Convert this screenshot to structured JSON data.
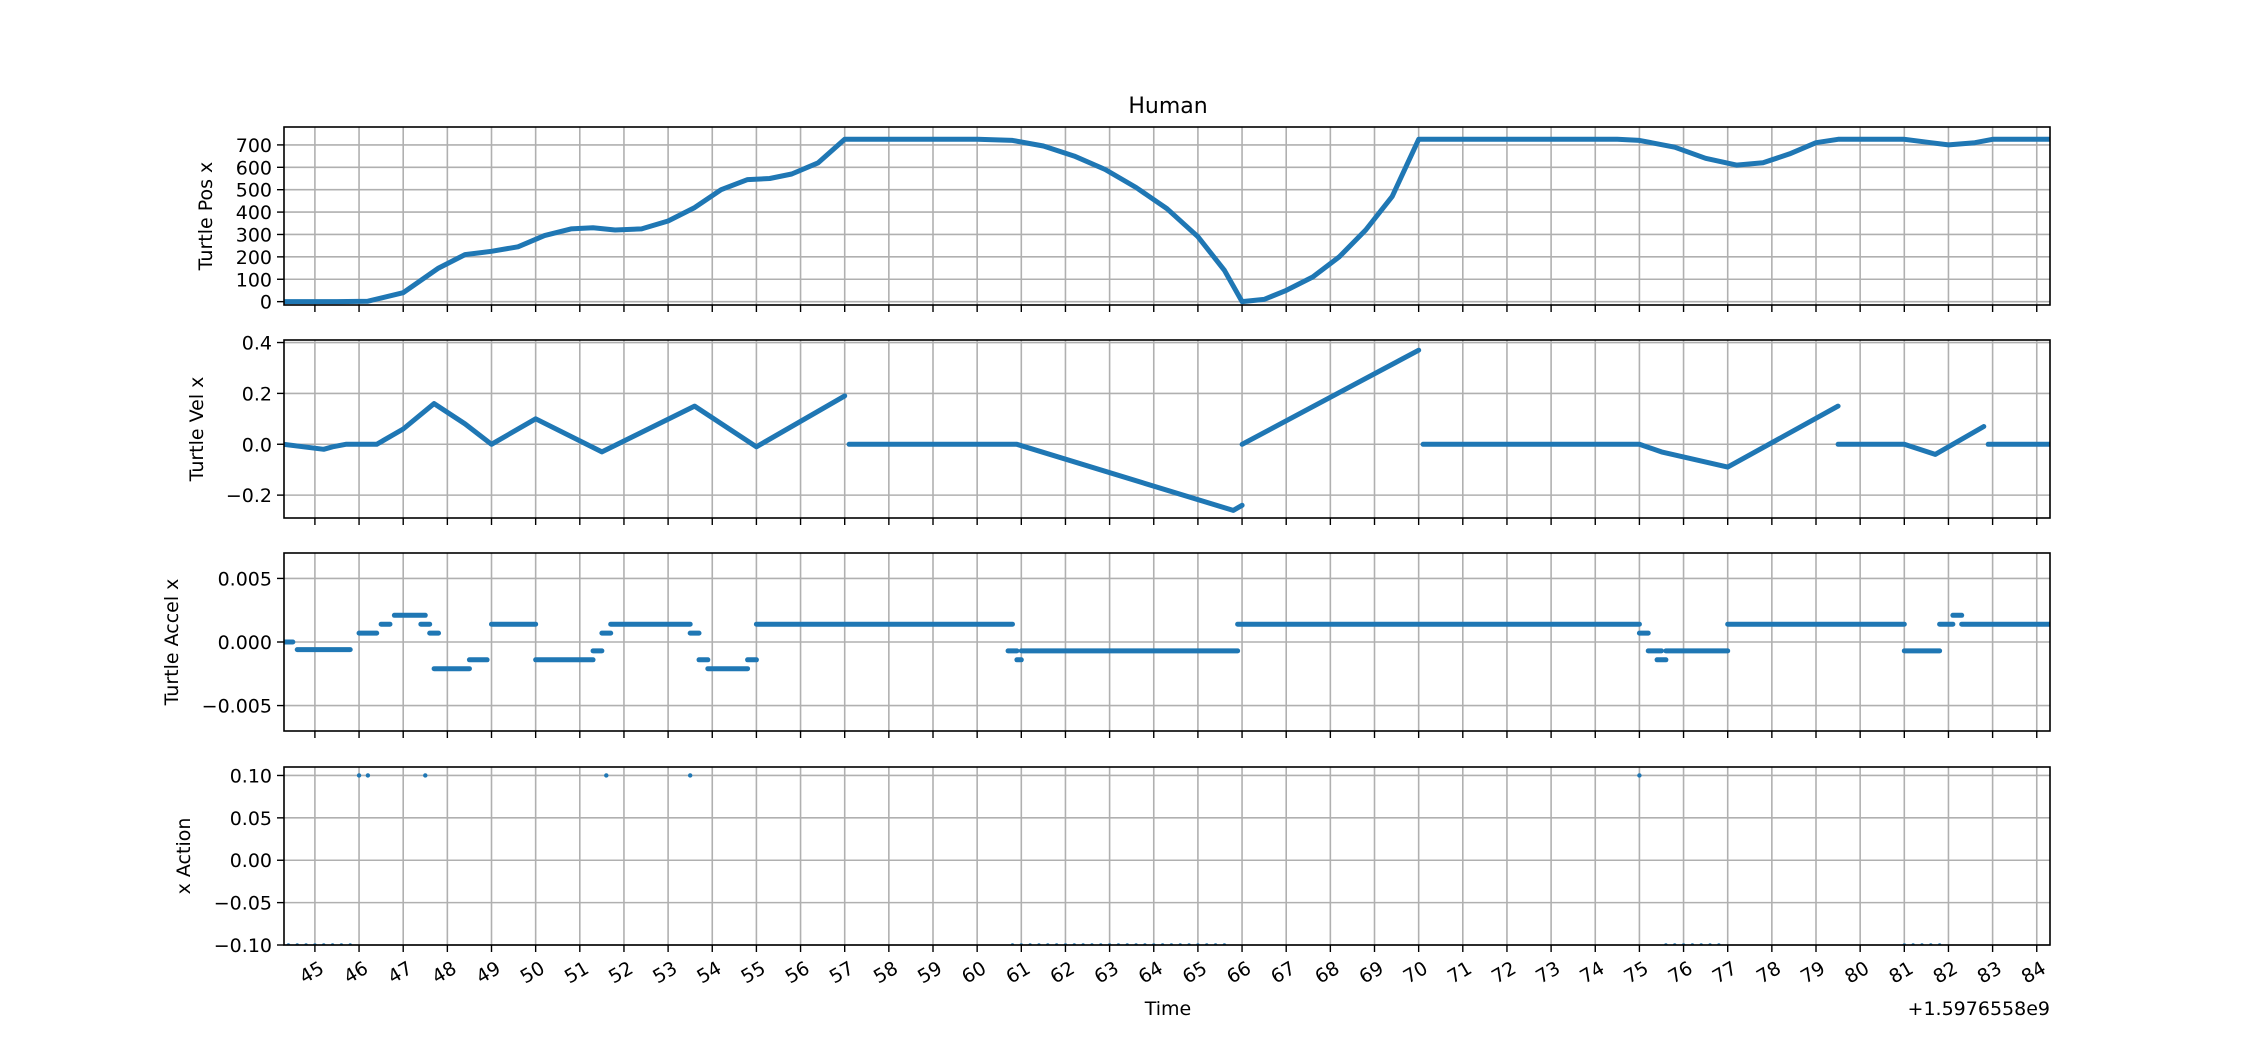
{
  "chart_data": [
    {
      "type": "line",
      "title": "Human",
      "ylabel": "Turtle Pos x",
      "ylim": [
        -15,
        780
      ],
      "yticks": [
        0,
        100,
        200,
        300,
        400,
        500,
        600,
        700
      ],
      "ytick_labels": [
        "0",
        "100",
        "200",
        "300",
        "400",
        "500",
        "600",
        "700"
      ],
      "grid": true,
      "color": "#1f77b4",
      "series": [
        {
          "x": [
            44.3,
            45.5,
            46.2,
            47.0,
            47.8,
            48.4,
            49.0,
            49.6,
            50.2,
            50.8,
            51.3,
            51.8,
            52.4,
            53.0,
            53.6,
            54.2,
            54.8,
            55.3,
            55.8,
            56.4,
            57.0,
            60.0,
            60.8,
            61.5,
            62.2,
            62.9,
            63.6,
            64.3,
            65.0,
            65.6,
            66.0,
            66.5,
            67.0,
            67.6,
            68.2,
            68.8,
            69.4,
            70.0,
            74.5,
            75.0,
            75.8,
            76.5,
            77.2,
            77.8,
            78.4,
            79.0,
            79.5,
            80.0,
            81.0,
            81.6,
            82.0,
            82.6,
            83.0,
            84.3
          ],
          "y": [
            0,
            0,
            2,
            40,
            150,
            210,
            225,
            245,
            295,
            325,
            330,
            320,
            325,
            360,
            420,
            500,
            545,
            550,
            570,
            620,
            725,
            725,
            720,
            695,
            650,
            590,
            510,
            415,
            290,
            140,
            0,
            10,
            50,
            110,
            200,
            320,
            470,
            725,
            725,
            720,
            690,
            640,
            610,
            620,
            660,
            710,
            725,
            725,
            725,
            710,
            700,
            710,
            725,
            725
          ]
        }
      ]
    },
    {
      "type": "line",
      "ylabel": "Turtle Vel x",
      "ylim": [
        -0.29,
        0.41
      ],
      "yticks": [
        -0.2,
        0.0,
        0.2,
        0.4
      ],
      "ytick_labels": [
        "−0.2",
        "0.0",
        "0.2",
        "0.4"
      ],
      "grid": true,
      "color": "#1f77b4",
      "series": [
        {
          "x": [
            44.3,
            45.2,
            45.4,
            45.7,
            46.4,
            47.0,
            47.7,
            48.4,
            49.0,
            50.0,
            51.5,
            53.6,
            55.0,
            57.0
          ],
          "y": [
            0,
            -0.02,
            -0.01,
            0,
            0,
            0.06,
            0.16,
            0.08,
            0,
            0.1,
            -0.03,
            0.15,
            -0.01,
            0.19
          ]
        },
        {
          "x": [
            57.1,
            60.9,
            65.8,
            66.0
          ],
          "y": [
            0,
            0,
            -0.26,
            -0.24
          ]
        },
        {
          "x": [
            66.0,
            70.0
          ],
          "y": [
            0,
            0.37
          ]
        },
        {
          "x": [
            70.1,
            75.0,
            75.5,
            77.0,
            79.5
          ],
          "y": [
            0,
            0,
            -0.03,
            -0.09,
            0.15
          ]
        },
        {
          "x": [
            79.5,
            81.0,
            81.7,
            82.8
          ],
          "y": [
            0,
            0,
            -0.04,
            0.07
          ]
        },
        {
          "x": [
            82.9,
            84.3
          ],
          "y": [
            0,
            0
          ]
        }
      ]
    },
    {
      "type": "scatter",
      "ylabel": "Turtle Accel x",
      "ylim": [
        -0.007,
        0.007
      ],
      "yticks": [
        -0.005,
        0.0,
        0.005
      ],
      "ytick_labels": [
        "−0.005",
        "0.000",
        "0.005"
      ],
      "grid": true,
      "color": "#1f77b4",
      "segments": [
        {
          "x": [
            44.3,
            44.5
          ],
          "y": 0.0
        },
        {
          "x": [
            44.6,
            45.8
          ],
          "y": -0.0006
        },
        {
          "x": [
            46.0,
            46.4
          ],
          "y": 0.0007
        },
        {
          "x": [
            46.5,
            46.7
          ],
          "y": 0.0014
        },
        {
          "x": [
            46.8,
            47.5
          ],
          "y": 0.0021
        },
        {
          "x": [
            47.4,
            47.6
          ],
          "y": 0.0014
        },
        {
          "x": [
            47.6,
            47.8
          ],
          "y": 0.0007
        },
        {
          "x": [
            47.7,
            48.5
          ],
          "y": -0.0021
        },
        {
          "x": [
            48.5,
            48.9
          ],
          "y": -0.0014
        },
        {
          "x": [
            49.0,
            50.0
          ],
          "y": 0.0014
        },
        {
          "x": [
            50.0,
            51.3
          ],
          "y": -0.0014
        },
        {
          "x": [
            51.3,
            51.5
          ],
          "y": -0.0007
        },
        {
          "x": [
            51.5,
            51.7
          ],
          "y": 0.0007
        },
        {
          "x": [
            51.7,
            53.5
          ],
          "y": 0.0014
        },
        {
          "x": [
            53.5,
            53.7
          ],
          "y": 0.0007
        },
        {
          "x": [
            53.7,
            53.9
          ],
          "y": -0.0014
        },
        {
          "x": [
            53.9,
            54.8
          ],
          "y": -0.0021
        },
        {
          "x": [
            54.8,
            55.0
          ],
          "y": -0.0014
        },
        {
          "x": [
            55.0,
            60.8
          ],
          "y": 0.0014
        },
        {
          "x": [
            60.7,
            60.9
          ],
          "y": -0.0007
        },
        {
          "x": [
            60.9,
            61.0
          ],
          "y": -0.0014
        },
        {
          "x": [
            61.0,
            65.9
          ],
          "y": -0.0007
        },
        {
          "x": [
            65.9,
            75.0
          ],
          "y": 0.0014
        },
        {
          "x": [
            75.0,
            75.2
          ],
          "y": 0.0007
        },
        {
          "x": [
            75.2,
            75.5
          ],
          "y": -0.0007
        },
        {
          "x": [
            75.4,
            75.6
          ],
          "y": -0.0014
        },
        {
          "x": [
            75.6,
            77.0
          ],
          "y": -0.0007
        },
        {
          "x": [
            77.0,
            81.0
          ],
          "y": 0.0014
        },
        {
          "x": [
            81.0,
            81.8
          ],
          "y": -0.0007
        },
        {
          "x": [
            81.8,
            82.1
          ],
          "y": 0.0014
        },
        {
          "x": [
            82.1,
            82.3
          ],
          "y": 0.0021
        },
        {
          "x": [
            82.3,
            84.3
          ],
          "y": 0.0014
        }
      ]
    },
    {
      "type": "scatter",
      "ylabel": "x Action",
      "xlabel": "Time",
      "ylim": [
        -0.1,
        0.11
      ],
      "yticks": [
        -0.1,
        -0.05,
        0.0,
        0.05,
        0.1
      ],
      "ytick_labels": [
        "−0.10",
        "−0.05",
        "0.00",
        "0.05",
        "0.10"
      ],
      "grid": true,
      "color": "#1f77b4",
      "high_x": [
        46.0,
        46.2,
        47.5,
        51.6,
        53.5,
        75.0
      ],
      "low_x": [
        44.4,
        44.6,
        44.8,
        45.0,
        45.2,
        45.4,
        45.6,
        45.8,
        60.8,
        61.0,
        61.2,
        61.4,
        61.6,
        61.8,
        62.0,
        62.2,
        62.4,
        62.6,
        62.8,
        63.0,
        63.2,
        63.4,
        63.6,
        63.8,
        64.0,
        64.2,
        64.4,
        64.6,
        64.8,
        65.0,
        65.2,
        65.4,
        65.6,
        75.6,
        75.8,
        76.0,
        76.2,
        76.4,
        76.6,
        76.8,
        81.0,
        81.2,
        81.4,
        81.6,
        81.8
      ]
    }
  ],
  "x_axis": {
    "xlim": [
      44.3,
      84.3
    ],
    "ticks": [
      45,
      46,
      47,
      48,
      49,
      50,
      51,
      52,
      53,
      54,
      55,
      56,
      57,
      58,
      59,
      60,
      61,
      62,
      63,
      64,
      65,
      66,
      67,
      68,
      69,
      70,
      71,
      72,
      73,
      74,
      75,
      76,
      77,
      78,
      79,
      80,
      81,
      82,
      83,
      84
    ],
    "tick_labels": [
      "45",
      "46",
      "47",
      "48",
      "49",
      "50",
      "51",
      "52",
      "53",
      "54",
      "55",
      "56",
      "57",
      "58",
      "59",
      "60",
      "61",
      "62",
      "63",
      "64",
      "65",
      "66",
      "67",
      "68",
      "69",
      "70",
      "71",
      "72",
      "73",
      "74",
      "75",
      "76",
      "77",
      "78",
      "79",
      "80",
      "81",
      "82",
      "83",
      "84"
    ],
    "label": "Time",
    "offset_text": "+1.5976558e9"
  }
}
